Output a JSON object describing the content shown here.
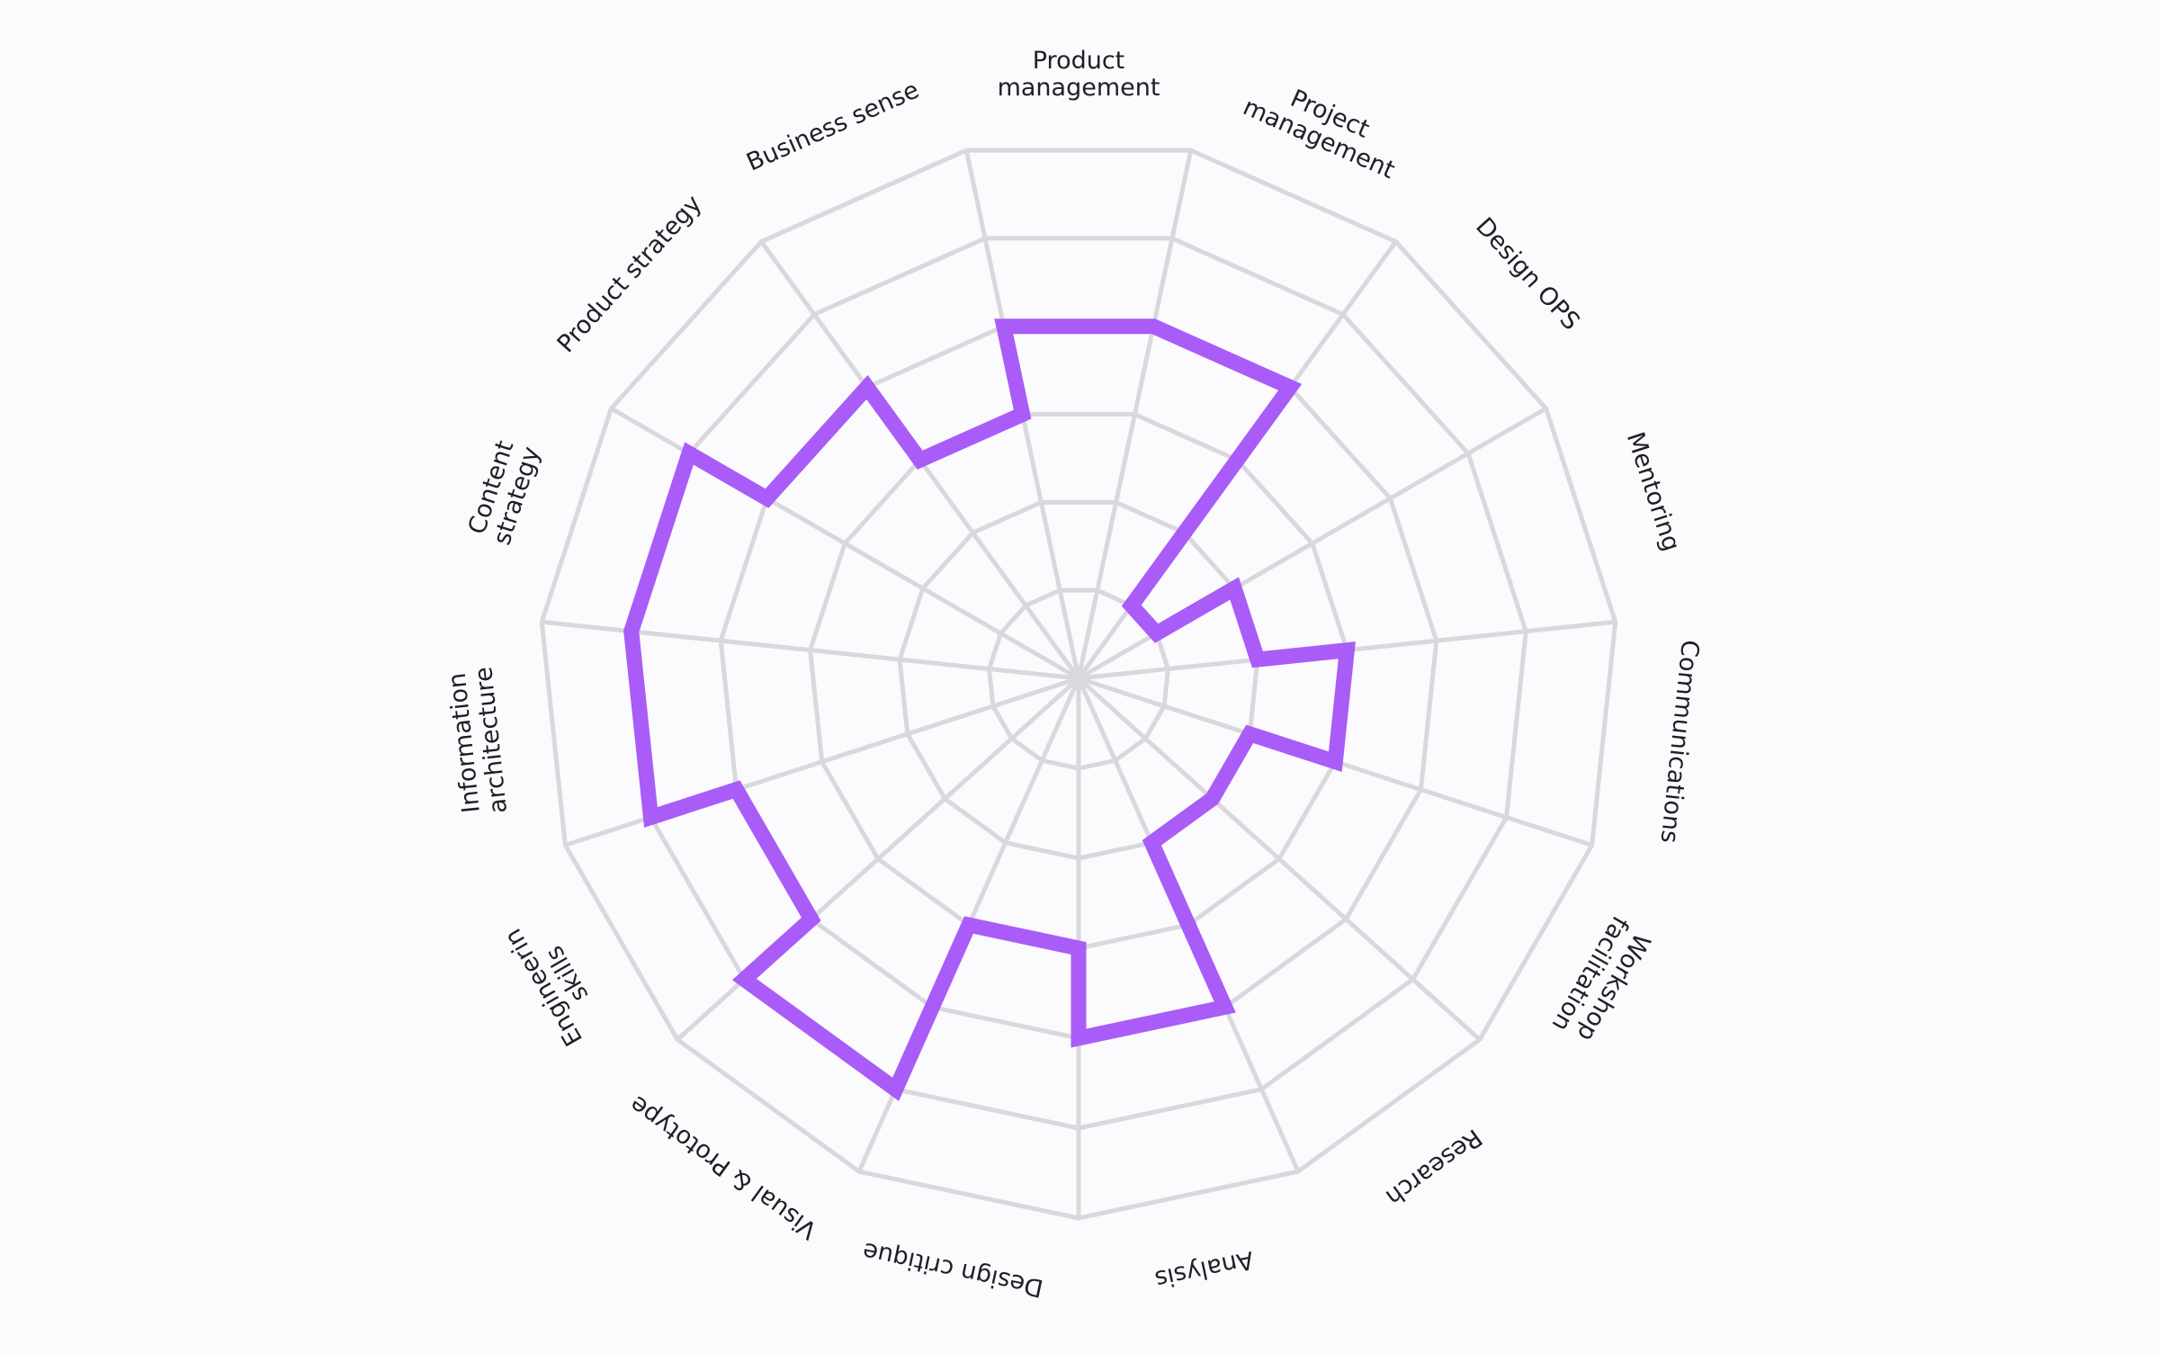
{
  "chart_data": {
    "type": "radar",
    "style": "stepped",
    "scale": {
      "min": 0,
      "max": 6,
      "rings": 6
    },
    "grid": true,
    "colors": {
      "series": "#a95cf7",
      "grid": "#d9d8dc",
      "text": "#1f1f24",
      "background": "#fbfafd"
    },
    "categories": [
      [
        "Product",
        "management"
      ],
      [
        "Project",
        "management"
      ],
      [
        "Design OPS"
      ],
      [
        "Mentoring"
      ],
      [
        "Communications"
      ],
      [
        "Workshop",
        "facilitation"
      ],
      [
        "Research"
      ],
      [
        "Analysis"
      ],
      [
        "Design critique"
      ],
      [
        "Visual & Prototype"
      ],
      [
        "Engineerin",
        "skills"
      ],
      [
        "Information",
        "architecture"
      ],
      [
        "Content",
        "strategy"
      ],
      [
        "Product strategy"
      ],
      [
        "Business sense"
      ]
    ],
    "series": [
      {
        "values": [
          4,
          4,
          1,
          2,
          3,
          2,
          2,
          4,
          3,
          5,
          4,
          5,
          5,
          4,
          3
        ]
      }
    ]
  }
}
